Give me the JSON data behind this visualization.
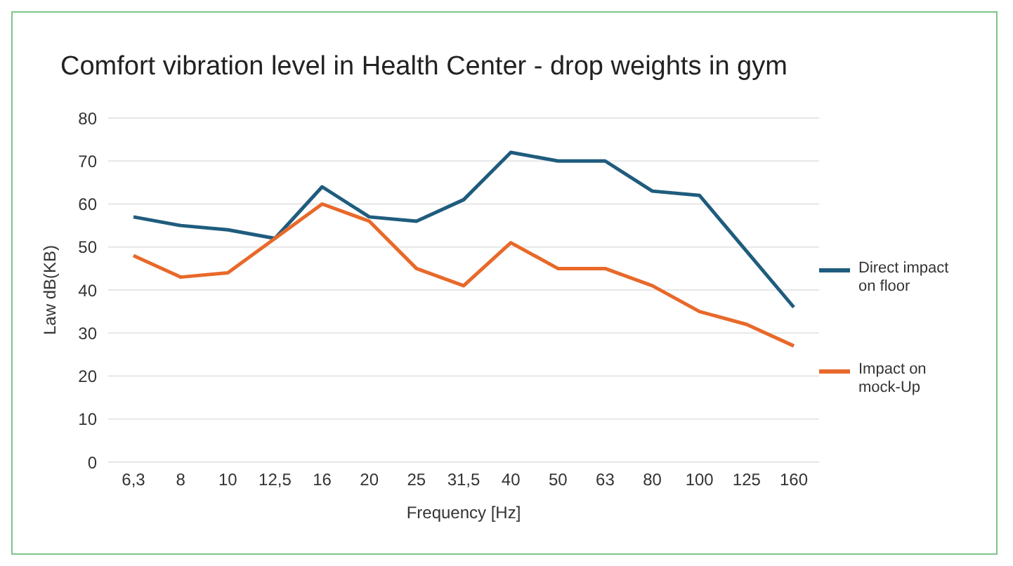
{
  "chart_data": {
    "type": "line",
    "title": "Comfort vibration level in Health Center - drop weights in gym",
    "xlabel": "Frequency [Hz]",
    "ylabel": "Law dB(KB)",
    "categories": [
      "6,3",
      "8",
      "10",
      "12,5",
      "16",
      "20",
      "25",
      "31,5",
      "40",
      "50",
      "63",
      "80",
      "100",
      "125",
      "160"
    ],
    "series": [
      {
        "name": "Direct impact on floor",
        "color": "#1f5c7e",
        "values": [
          57,
          55,
          54,
          52,
          64,
          57,
          56,
          61,
          72,
          70,
          70,
          63,
          62,
          49,
          36
        ]
      },
      {
        "name": "Impact on mock-Up",
        "color": "#e8692a",
        "values": [
          48,
          43,
          44,
          52,
          60,
          56,
          45,
          41,
          51,
          45,
          45,
          41,
          35,
          32,
          27
        ]
      }
    ],
    "ylim": [
      0,
      80
    ],
    "yticks": [
      0,
      10,
      20,
      30,
      40,
      50,
      60,
      70,
      80
    ],
    "grid": "y",
    "legend": "right",
    "marker": "none",
    "line_style": "solid"
  }
}
